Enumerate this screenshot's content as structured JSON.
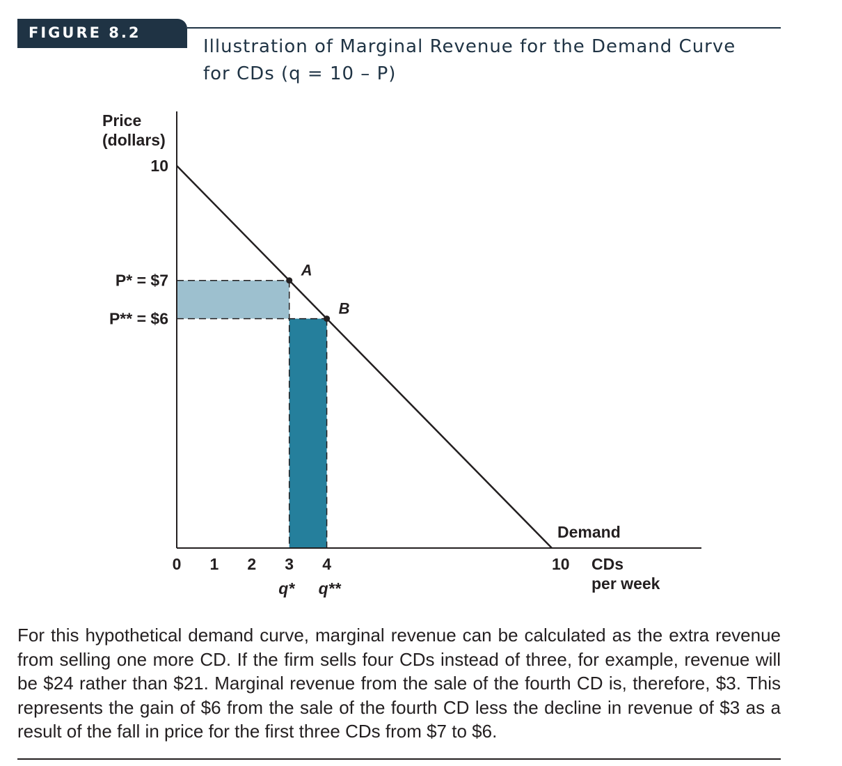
{
  "figure_label": "FIGURE 8.2",
  "title": "Illustration of Marginal Revenue for the Demand Curve\nfor CDs (q = 10 – P)",
  "caption": "For this hypothetical demand curve, marginal revenue can be calculated as the extra revenue from selling one more CD. If the firm sells four CDs instead of three, for example, revenue will be $24 rather than $21. Marginal revenue from the sale of the fourth CD is, therefore, $3. This represents the gain of $6 from the sale of the fourth CD less the decline in revenue of $3 as a result of the fall in price for the first three CDs from $7 to $6.",
  "colors": {
    "tab": "#1f3344",
    "light_rect": "#9dc0cf",
    "dark_rect": "#257f9c",
    "curve": "#231f20"
  },
  "chart_data": {
    "type": "line",
    "ylabel": "Price\n(dollars)",
    "xlabel": "CDs\nper week",
    "xlim": [
      0,
      10
    ],
    "ylim": [
      0,
      10
    ],
    "x_ticks": [
      "0",
      "1",
      "2",
      "3",
      "4",
      "10"
    ],
    "x_tick_values": [
      0,
      1,
      2,
      3,
      4,
      10
    ],
    "y_ticks": [
      {
        "value": 10,
        "label": "10"
      },
      {
        "value": 7,
        "label": "P* = $7"
      },
      {
        "value": 6,
        "label": "P** = $6"
      }
    ],
    "q_labels": [
      {
        "value": 3,
        "label": "q*"
      },
      {
        "value": 4,
        "label": "q**"
      }
    ],
    "series": [
      {
        "name": "Demand",
        "x": [
          0,
          10
        ],
        "y": [
          10,
          0
        ]
      }
    ],
    "points": [
      {
        "label": "A",
        "x": 3,
        "y": 7
      },
      {
        "label": "B",
        "x": 4,
        "y": 6
      }
    ],
    "shaded_regions": [
      {
        "x": [
          0,
          3
        ],
        "y": [
          6,
          7
        ],
        "tone": "light"
      },
      {
        "x": [
          3,
          4
        ],
        "y": [
          0,
          6
        ],
        "tone": "dark"
      }
    ]
  }
}
